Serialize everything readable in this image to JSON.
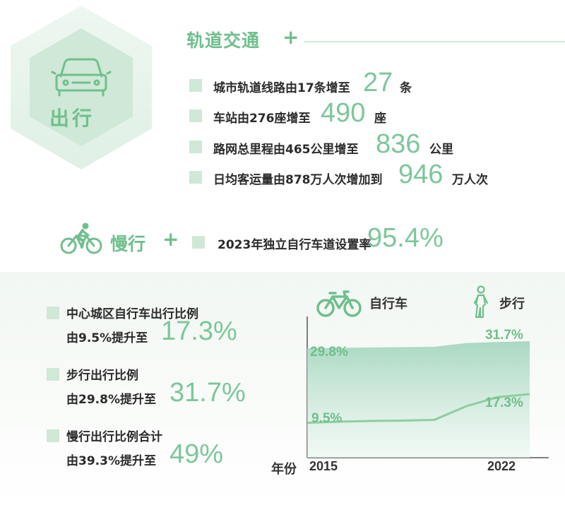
{
  "car_block": {
    "label": "出行",
    "icon": "car-icon"
  },
  "rail": {
    "title": "轨道交通",
    "plus": "+",
    "stats": [
      {
        "pre": "城市轨道线路由17条增至",
        "value": "27",
        "unit": "条"
      },
      {
        "pre": "车站由276座增至",
        "value": "490",
        "unit": "座"
      },
      {
        "pre": "路网总里程由465公里增至",
        "value": "836",
        "unit": "公里"
      },
      {
        "pre": "日均客运量由878万人次增加到",
        "value": "946",
        "unit": "万人次"
      }
    ]
  },
  "slow": {
    "label": "慢行",
    "plus": "+",
    "icon": "cyclist-icon",
    "stat_pre": "2023年独立自行车道设置率",
    "stat_value": "95.4%"
  },
  "ratios": [
    {
      "title": "中心城区自行车出行比例",
      "desc": "由9.5%提升至",
      "value": "17.3%"
    },
    {
      "title": "步行出行比例",
      "desc": "由29.8%提升至",
      "value": "31.7%"
    },
    {
      "title": "慢行出行比例合计",
      "desc": "由39.3%提升至",
      "value": "49%"
    }
  ],
  "colors": {
    "accent": "#7cc79a",
    "hexagon": "#d9eee0",
    "area": "#a9d8c1",
    "line": "#8fcd9f"
  },
  "chart_data": {
    "type": "area",
    "xlabel": "年份",
    "x_ticks": [
      "2015",
      "2022"
    ],
    "legend": [
      {
        "name": "自行车",
        "icon": "bicycle-icon"
      },
      {
        "name": "步行",
        "icon": "pedestrian-icon"
      }
    ],
    "ylim": [
      0,
      40
    ],
    "series": [
      {
        "name": "步行",
        "style": "area",
        "x": [
          2015,
          2016,
          2017,
          2018,
          2019,
          2020,
          2021,
          2022
        ],
        "values": [
          29.8,
          29.9,
          30.0,
          30.1,
          30.2,
          31.2,
          31.5,
          31.7
        ],
        "labels": {
          "start": "29.8%",
          "end": "31.7%"
        }
      },
      {
        "name": "自行车",
        "style": "line",
        "x": [
          2015,
          2016,
          2017,
          2018,
          2019,
          2020,
          2021,
          2022
        ],
        "values": [
          9.5,
          9.8,
          10.0,
          10.1,
          10.3,
          14.0,
          16.5,
          17.3
        ],
        "labels": {
          "start": "9.5%",
          "end": "17.3%"
        }
      }
    ]
  }
}
